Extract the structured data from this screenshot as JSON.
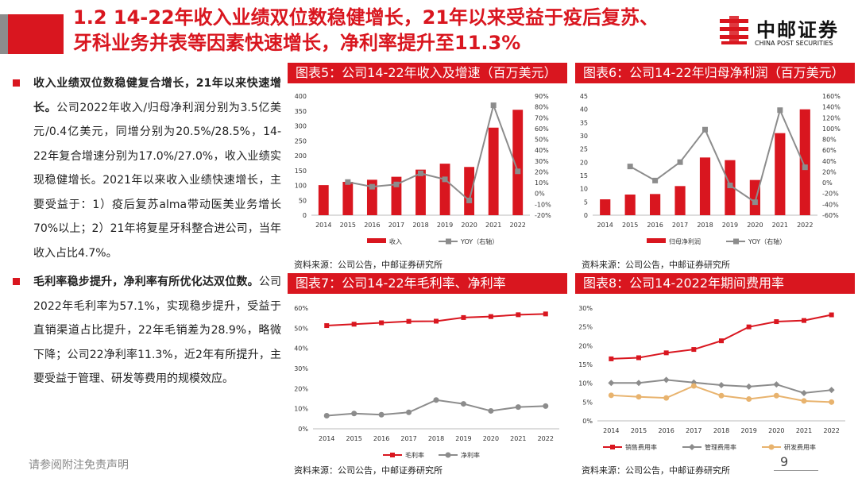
{
  "header": {
    "title_line1": "1.2  14-22年收入业绩双位数稳健增长，21年以来受益于疫后复苏、",
    "title_line2": "牙科业务并表等因素快速增长，净利率提升至11.3%",
    "logo_cn": "中邮证券",
    "logo_en": "CHINA POST SECURITIES"
  },
  "left": {
    "p1_heading": "收入业绩双位数稳健复合增长，21年以来快速增长。",
    "p1_body": "公司2022年收入/归母净利润分别为3.5亿美元/0.4亿美元，同增分别为20.5%/28.5%，14-22年复合增速分别为17.0%/27.0%，收入业绩实现稳健增长。2021年以来收入业绩快速增长，主要受益于：1）疫后复苏alma带动医美业务增长70%以上；2）21年将复星牙科整合进公司，当年收入占比4.7%。",
    "p2_heading": "毛利率稳步提升，净利率有所优化达双位数。",
    "p2_body": "公司2022年毛利率为57.1%，实现稳步提升，受益于直销渠道占比提升，22年毛销差为28.9%，略微下降；公司22净利率11.3%，近2年有所提升，主要受益于管理、研发等费用的规模效应。"
  },
  "footer": {
    "disclaimer": "请参阅附注免责声明",
    "page": "9"
  },
  "panels": [
    {
      "title": "图表5：公司14-22年收入及增速（百万美元）",
      "source": "资料来源：公司公告，中邮证券研究所"
    },
    {
      "title": "图表6：公司14-22年归母净利润（百万美元）",
      "source": "资料来源：公司公告，中邮证券研究所"
    },
    {
      "title": "图表7：公司14-22年毛利率、净利率",
      "source": "资料来源：公司公告，中邮证券研究所"
    },
    {
      "title": "图表8：公司14-2022年期间费用率",
      "source": "资料来源：公司公告，中邮证券研究所"
    }
  ],
  "colors": {
    "red": "#d9161f",
    "gray": "#8c8c8c",
    "tan": "#e8b36e"
  },
  "chart_data": [
    {
      "type": "bar",
      "title": "图表5：公司14-22年收入及增速（百万美元）",
      "categories": [
        "2014",
        "2015",
        "2016",
        "2017",
        "2018",
        "2019",
        "2020",
        "2021",
        "2022"
      ],
      "series": [
        {
          "name": "收入",
          "kind": "bar",
          "axis": "left",
          "values": [
            101,
            112,
            119,
            129,
            153,
            173,
            162,
            294,
            354
          ]
        },
        {
          "name": "YOY（右轴）",
          "kind": "line",
          "axis": "right",
          "values": [
            null,
            10.6,
            6.3,
            8.4,
            18.6,
            13.1,
            -6.4,
            81.5,
            20.5
          ]
        }
      ],
      "ylim_left": [
        0,
        400
      ],
      "yticks_left": [
        0,
        50,
        100,
        150,
        200,
        250,
        300,
        350,
        400
      ],
      "ylim_right": [
        -20,
        90
      ],
      "yticks_right": [
        -20,
        -10,
        0,
        10,
        20,
        30,
        40,
        50,
        60,
        70,
        80,
        90
      ]
    },
    {
      "type": "bar",
      "title": "图表6：公司14-22年归母净利润（百万美元）",
      "categories": [
        "2014",
        "2015",
        "2016",
        "2017",
        "2018",
        "2019",
        "2020",
        "2021",
        "2022"
      ],
      "series": [
        {
          "name": "归母净利润",
          "kind": "bar",
          "axis": "left",
          "values": [
            6,
            7.8,
            8,
            11,
            21.8,
            20.8,
            13.3,
            31,
            40
          ]
        },
        {
          "name": "YOY（右轴）",
          "kind": "line",
          "axis": "right",
          "values": [
            null,
            30,
            4,
            38,
            98,
            -5,
            -36,
            134,
            28.5
          ]
        }
      ],
      "ylim_left": [
        0,
        45
      ],
      "yticks_left": [
        0,
        5,
        10,
        15,
        20,
        25,
        30,
        35,
        40,
        45
      ],
      "ylim_right": [
        -60,
        160
      ],
      "yticks_right": [
        -60,
        -40,
        -20,
        0,
        20,
        40,
        60,
        80,
        100,
        120,
        140,
        160
      ]
    },
    {
      "type": "line",
      "title": "图表7：公司14-22年毛利率、净利率",
      "categories": [
        "2014",
        "2015",
        "2016",
        "2017",
        "2018",
        "2019",
        "2020",
        "2021",
        "2022"
      ],
      "series": [
        {
          "name": "毛利率",
          "values": [
            51.3,
            52.0,
            52.7,
            53.4,
            53.5,
            55.3,
            55.8,
            56.7,
            57.1
          ]
        },
        {
          "name": "净利率",
          "values": [
            6.5,
            7.6,
            7.0,
            8.2,
            14.3,
            12.4,
            8.9,
            10.8,
            11.3
          ]
        }
      ],
      "ylim": [
        0,
        60
      ],
      "yticks": [
        0,
        10,
        20,
        30,
        40,
        50,
        60
      ],
      "yunit": "%"
    },
    {
      "type": "line",
      "title": "图表8：公司14-2022年期间费用率",
      "categories": [
        "2014",
        "2015",
        "2016",
        "2017",
        "2018",
        "2019",
        "2020",
        "2021",
        "2022"
      ],
      "series": [
        {
          "name": "销售费用率",
          "values": [
            16.5,
            16.8,
            18.1,
            19.0,
            21.3,
            25.0,
            26.4,
            26.7,
            28.2
          ]
        },
        {
          "name": "管理费用率",
          "values": [
            10.1,
            10.1,
            10.9,
            10.2,
            9.5,
            9.1,
            9.7,
            7.4,
            8.2
          ]
        },
        {
          "name": "研发费用率",
          "values": [
            6.8,
            6.4,
            6.1,
            9.3,
            6.7,
            5.8,
            6.7,
            5.3,
            5.0
          ]
        }
      ],
      "ylim": [
        0,
        30
      ],
      "yticks": [
        0,
        5,
        10,
        15,
        20,
        25,
        30
      ],
      "yunit": "%"
    }
  ]
}
